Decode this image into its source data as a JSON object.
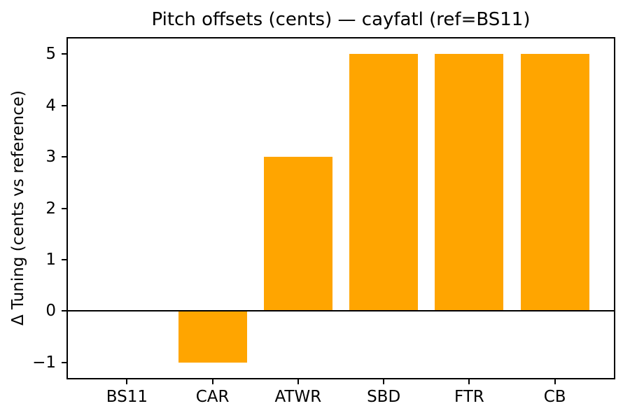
{
  "figure": {
    "background_color": "#FFFFFF",
    "text_color": "#000000",
    "spine_color": "#000000"
  },
  "chart_data": {
    "type": "bar",
    "title": "Pitch offsets (cents) — cayfatl (ref=BS11)",
    "xlabel": "",
    "ylabel": "Δ Tuning (cents vs reference)",
    "categories": [
      "BS11",
      "CAR",
      "ATWR",
      "SBD",
      "FTR",
      "CB"
    ],
    "values": [
      0,
      -1,
      3,
      5,
      5,
      5
    ],
    "bar_color": "#FFA500",
    "bar_width_fraction": 0.8,
    "ylim": [
      -1.3,
      5.3
    ],
    "yticks": [
      -1,
      0,
      1,
      2,
      3,
      4,
      5
    ],
    "ytick_labels": [
      "−1",
      "0",
      "1",
      "2",
      "3",
      "4",
      "5"
    ],
    "zero_line": true,
    "grid": false,
    "legend": null
  }
}
